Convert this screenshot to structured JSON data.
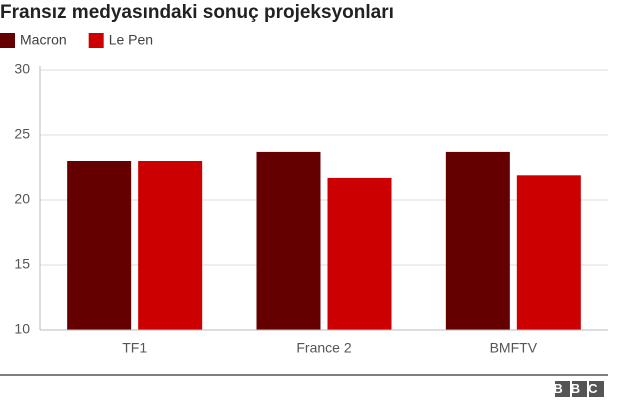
{
  "chart_data": {
    "type": "bar",
    "title": "Fransız medyasındaki sonuç projeksyonları",
    "categories": [
      "TF1",
      "France 2",
      "BMFTV"
    ],
    "series": [
      {
        "name": "Macron",
        "color": "#650000",
        "values": [
          23.0,
          23.7,
          23.7
        ]
      },
      {
        "name": "Le Pen",
        "color": "#cc0000",
        "values": [
          23.0,
          21.7,
          21.9
        ]
      }
    ],
    "ylim": [
      10,
      30
    ],
    "yticks": [
      10,
      15,
      20,
      25,
      30
    ],
    "grid": true,
    "source": "BBC"
  }
}
